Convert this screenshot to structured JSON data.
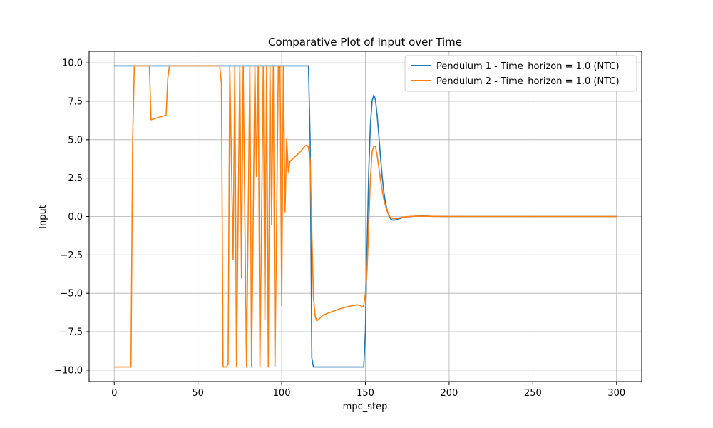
{
  "chart_data": {
    "type": "line",
    "title": "Comparative Plot of Input over Time",
    "xlabel": "mpc_step",
    "ylabel": "Input",
    "xlim": [
      -15,
      315
    ],
    "ylim": [
      -10.75,
      10.75
    ],
    "xticks": [
      0,
      50,
      100,
      150,
      200,
      250,
      300
    ],
    "yticks": [
      -10.0,
      -7.5,
      -5.0,
      -2.5,
      0.0,
      2.5,
      5.0,
      7.5,
      10.0
    ],
    "xtick_labels": [
      "0",
      "50",
      "100",
      "150",
      "200",
      "250",
      "300"
    ],
    "ytick_labels": [
      "−10.0",
      "−7.5",
      "−5.0",
      "−2.5",
      "0.0",
      "2.5",
      "5.0",
      "7.5",
      "10.0"
    ],
    "grid": true,
    "legend_position": "top-right",
    "series": [
      {
        "name": "Pendulum 1 - Time_horizon = 1.0 (NTC)",
        "color": "#1f77b4",
        "points": [
          [
            0,
            9.8
          ],
          [
            116,
            9.8
          ],
          [
            117,
            5.0
          ],
          [
            118,
            -9.2
          ],
          [
            119,
            -9.8
          ],
          [
            149,
            -9.8
          ],
          [
            150,
            -7.5
          ],
          [
            151,
            -2.0
          ],
          [
            152,
            3.0
          ],
          [
            153,
            6.0
          ],
          [
            154,
            7.5
          ],
          [
            155,
            7.9
          ],
          [
            156,
            7.6
          ],
          [
            157,
            6.6
          ],
          [
            158,
            5.3
          ],
          [
            159,
            3.9
          ],
          [
            160,
            2.6
          ],
          [
            161,
            1.6
          ],
          [
            162,
            0.9
          ],
          [
            163,
            0.4
          ],
          [
            164,
            0.05
          ],
          [
            165,
            -0.15
          ],
          [
            166,
            -0.22
          ],
          [
            167,
            -0.25
          ],
          [
            168,
            -0.22
          ],
          [
            170,
            -0.15
          ],
          [
            172,
            -0.08
          ],
          [
            175,
            -0.02
          ],
          [
            180,
            0.02
          ],
          [
            185,
            0.03
          ],
          [
            190,
            0.01
          ],
          [
            200,
            0.0
          ],
          [
            300,
            0.0
          ]
        ]
      },
      {
        "name": "Pendulum 2 - Time_horizon = 1.0 (NTC)",
        "color": "#ff7f0e",
        "points": [
          [
            0,
            -9.8
          ],
          [
            10,
            -9.8
          ],
          [
            11,
            5.0
          ],
          [
            12,
            9.8
          ],
          [
            21,
            9.8
          ],
          [
            22,
            6.3
          ],
          [
            31,
            6.6
          ],
          [
            32,
            9.0
          ],
          [
            33,
            9.8
          ],
          [
            63,
            9.8
          ],
          [
            64,
            8.7
          ],
          [
            65,
            -9.8
          ],
          [
            67,
            -9.8
          ],
          [
            68,
            -9.6
          ],
          [
            69,
            9.8
          ],
          [
            71,
            -2.8
          ],
          [
            72,
            9.8
          ],
          [
            73,
            -9.8
          ],
          [
            75,
            9.8
          ],
          [
            76,
            -4.0
          ],
          [
            77,
            9.8
          ],
          [
            79,
            -9.8
          ],
          [
            81,
            9.8
          ],
          [
            82,
            -9.8
          ],
          [
            84,
            9.8
          ],
          [
            85,
            2.6
          ],
          [
            86,
            9.8
          ],
          [
            87,
            -9.8
          ],
          [
            89,
            9.8
          ],
          [
            90,
            -6.7
          ],
          [
            91,
            9.8
          ],
          [
            92,
            -9.8
          ],
          [
            93,
            9.8
          ],
          [
            94,
            -0.5
          ],
          [
            95,
            9.8
          ],
          [
            96,
            -9.8
          ],
          [
            98,
            9.8
          ],
          [
            99,
            9.8
          ],
          [
            100,
            -5.8
          ],
          [
            101,
            9.8
          ],
          [
            102,
            0.3
          ],
          [
            103,
            5.1
          ],
          [
            104,
            2.9
          ],
          [
            105,
            3.6
          ],
          [
            108,
            3.9
          ],
          [
            111,
            4.2
          ],
          [
            114,
            4.6
          ],
          [
            115,
            4.65
          ],
          [
            116,
            4.5
          ],
          [
            117,
            3.7
          ],
          [
            118,
            -1.0
          ],
          [
            119,
            -5.3
          ],
          [
            120,
            -6.5
          ],
          [
            121,
            -6.8
          ],
          [
            122,
            -6.7
          ],
          [
            125,
            -6.4
          ],
          [
            130,
            -6.2
          ],
          [
            135,
            -6.0
          ],
          [
            140,
            -5.85
          ],
          [
            145,
            -5.75
          ],
          [
            147,
            -5.8
          ],
          [
            148,
            -5.9
          ],
          [
            149,
            -5.8
          ],
          [
            150,
            -5.0
          ],
          [
            151,
            -3.5
          ],
          [
            152,
            -0.5
          ],
          [
            153,
            2.5
          ],
          [
            154,
            4.2
          ],
          [
            155,
            4.6
          ],
          [
            156,
            4.55
          ],
          [
            157,
            4.0
          ],
          [
            158,
            3.2
          ],
          [
            159,
            2.4
          ],
          [
            160,
            1.7
          ],
          [
            161,
            1.1
          ],
          [
            162,
            0.7
          ],
          [
            163,
            0.35
          ],
          [
            164,
            0.1
          ],
          [
            165,
            -0.05
          ],
          [
            166,
            -0.12
          ],
          [
            167,
            -0.15
          ],
          [
            168,
            -0.14
          ],
          [
            170,
            -0.1
          ],
          [
            172,
            -0.05
          ],
          [
            175,
            -0.01
          ],
          [
            180,
            0.02
          ],
          [
            185,
            0.02
          ],
          [
            190,
            0.01
          ],
          [
            200,
            0.0
          ],
          [
            300,
            0.0
          ]
        ]
      }
    ]
  }
}
